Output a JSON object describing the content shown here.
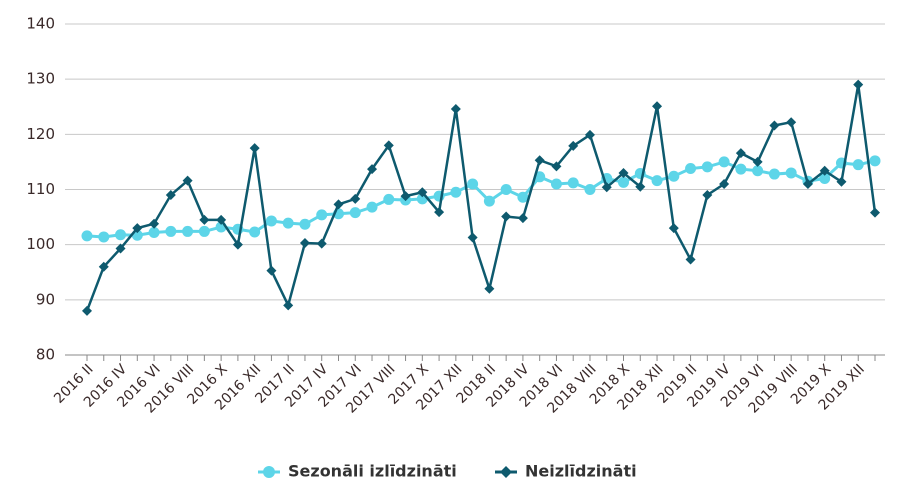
{
  "chart_data": {
    "type": "line",
    "categories": [
      "2016 II",
      null,
      "2016 IV",
      null,
      "2016 VI",
      null,
      "2016 VIII",
      null,
      "2016 X",
      null,
      "2016 XII",
      null,
      "2017 II",
      null,
      "2017 IV",
      null,
      "2017 VI",
      null,
      "2017 VIII",
      null,
      "2017 X",
      null,
      "2017 XII",
      null,
      "2018 II",
      null,
      "2018 IV",
      null,
      "2018 VI",
      null,
      "2018 VIII",
      null,
      "2018 X",
      null,
      "2018 XII",
      null,
      "2019 II",
      null,
      "2019 IV",
      null,
      "2019 VI",
      null,
      "2019 VIII",
      null,
      "2019 X",
      null,
      "2019 XII",
      null
    ],
    "series": [
      {
        "name": "Sezonāli izlīdzināti",
        "color": "#5dd5e8",
        "marker": "circle",
        "values": [
          101.6,
          101.4,
          101.8,
          101.7,
          102.2,
          102.4,
          102.4,
          102.4,
          103.2,
          102.8,
          102.3,
          104.3,
          103.9,
          103.7,
          105.4,
          105.6,
          105.8,
          106.8,
          108.2,
          108.1,
          108.3,
          108.8,
          109.5,
          111,
          107.9,
          110,
          108.6,
          112.3,
          111,
          111.2,
          110,
          112,
          111.3,
          112.9,
          111.6,
          112.4,
          113.8,
          114.1,
          115,
          113.7,
          113.4,
          112.8,
          113,
          111.5,
          112,
          114.8,
          114.5,
          115.2
        ]
      },
      {
        "name": "Neizlīdzināti",
        "color": "#0e5a6e",
        "marker": "diamond",
        "values": [
          88,
          96,
          99.3,
          103,
          103.8,
          109,
          111.6,
          104.5,
          104.5,
          100,
          117.5,
          95.3,
          89,
          100.3,
          100.2,
          107.3,
          108.3,
          113.7,
          118,
          108.8,
          109.5,
          105.9,
          124.6,
          101.3,
          92,
          105.1,
          104.8,
          115.3,
          114.2,
          117.9,
          119.9,
          110.4,
          113,
          110.5,
          125.1,
          103,
          97.3,
          109,
          111,
          116.6,
          115,
          121.6,
          122.2,
          111,
          113.4,
          111.4,
          129,
          105.8
        ]
      }
    ],
    "ylim": [
      80,
      140
    ],
    "yticks": [
      80,
      90,
      100,
      110,
      120,
      130,
      140
    ],
    "grid": true,
    "legend": "bottom"
  }
}
